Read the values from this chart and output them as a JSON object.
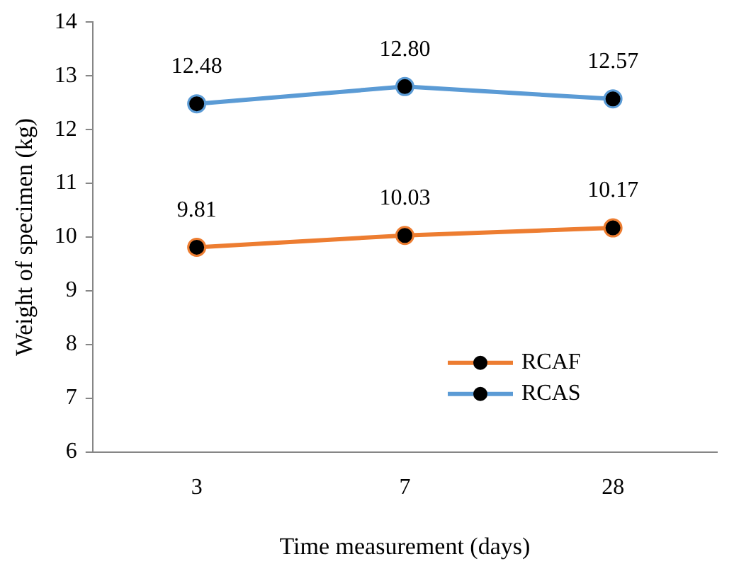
{
  "chart_data": {
    "type": "line",
    "xlabel": "Time measurement (days)",
    "ylabel": "Weight of specimen (kg)",
    "categories": [
      "3",
      "7",
      "28"
    ],
    "series": [
      {
        "name": "RCAF",
        "color": "#ed7d31",
        "values": [
          9.81,
          10.03,
          10.17
        ],
        "value_labels": [
          "9.81",
          "10.03",
          "10.17"
        ]
      },
      {
        "name": "RCAS",
        "color": "#5b9bd5",
        "values": [
          12.48,
          12.8,
          12.57
        ],
        "value_labels": [
          "12.48",
          "12.80",
          "12.57"
        ]
      }
    ],
    "ylim": [
      6,
      14
    ],
    "yticks": [
      6,
      7,
      8,
      9,
      10,
      11,
      12,
      13,
      14
    ],
    "grid": false,
    "legend": "bottom right",
    "marker": "circle",
    "line_style": "solid"
  }
}
